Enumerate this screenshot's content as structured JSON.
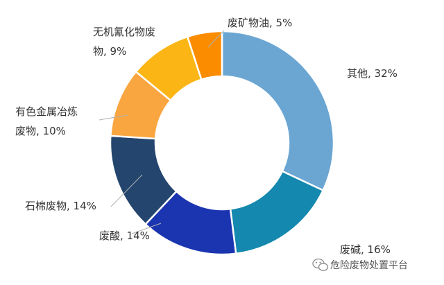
{
  "chart_data": {
    "type": "pie",
    "variant": "donut",
    "title": "",
    "slices": [
      {
        "name": "其他",
        "value": 32,
        "label_lines": [
          "其他, 32%"
        ],
        "color": "#6BA6D3"
      },
      {
        "name": "废碱",
        "value": 16,
        "label_lines": [
          "废碱, 16%"
        ],
        "color": "#1488AE"
      },
      {
        "name": "废酸",
        "value": 14,
        "label_lines": [
          "废酸, 14%"
        ],
        "color": "#1B35B0"
      },
      {
        "name": "石棉废物",
        "value": 14,
        "label_lines": [
          "石棉废物, 14%"
        ],
        "color": "#23456E"
      },
      {
        "name": "有色金属冶炼废物",
        "value": 10,
        "label_lines": [
          "有色金属冶炼",
          "废物, 10%"
        ],
        "color": "#F9A640"
      },
      {
        "name": "无机氰化物废物",
        "value": 9,
        "label_lines": [
          "无机氰化物废",
          "物, 9%"
        ],
        "color": "#FBB616"
      },
      {
        "name": "废矿物油",
        "value": 5,
        "label_lines": [
          "废矿物油, 5%"
        ],
        "color": "#FB8C00"
      }
    ],
    "legend": "none"
  },
  "watermark": {
    "text": "危险废物处置平台",
    "icon": "wechat-icon"
  }
}
